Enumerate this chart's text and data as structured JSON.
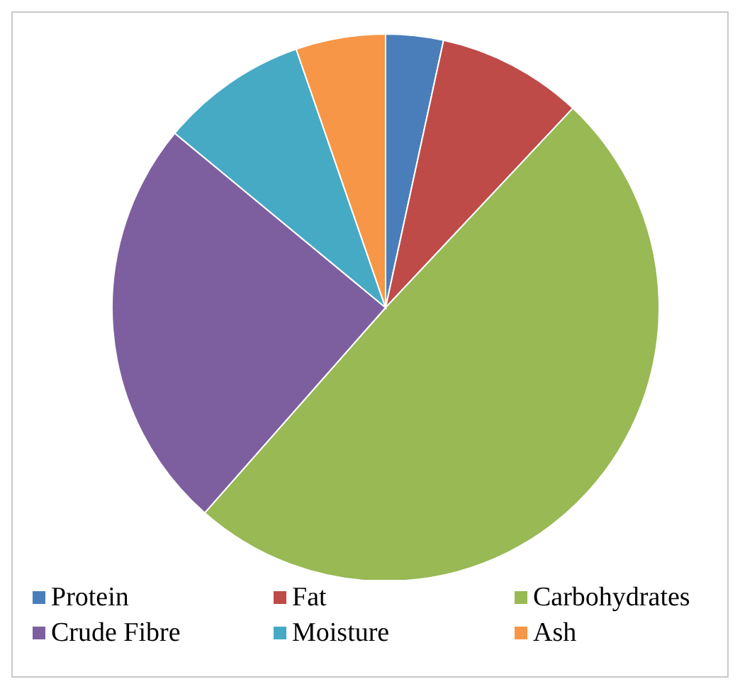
{
  "chart_data": {
    "type": "pie",
    "categories": [
      "Protein",
      "Fat",
      "Carbohydrates",
      "Crude Fibre",
      "Moisture",
      "Ash"
    ],
    "values": [
      3.4,
      8.6,
      49.5,
      24.5,
      8.7,
      5.3
    ],
    "colors": [
      "#4a7ebb",
      "#be4b48",
      "#98b954",
      "#7d5fa0",
      "#46aac5",
      "#f79646"
    ],
    "legend": "bottom"
  }
}
